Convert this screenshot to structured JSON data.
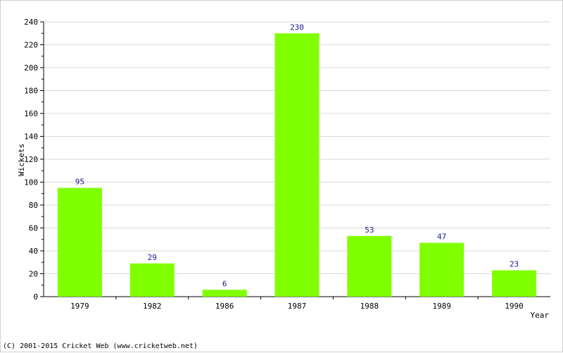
{
  "chart_data": {
    "type": "bar",
    "title": "",
    "xlabel": "Year",
    "ylabel": "Wickets",
    "categories": [
      "1979",
      "1982",
      "1986",
      "1987",
      "1988",
      "1989",
      "1990"
    ],
    "values": [
      95,
      29,
      6,
      230,
      53,
      47,
      23
    ],
    "ylim": [
      0,
      240
    ],
    "y_ticks": [
      0,
      20,
      40,
      60,
      80,
      100,
      120,
      140,
      160,
      180,
      200,
      220,
      240
    ],
    "grid": true,
    "bar_color": "#80ff00",
    "grid_color": "#d8d8d8",
    "label_color": "#1a1a8c"
  },
  "footer": {
    "copyright": "(C) 2001-2015 Cricket Web (www.cricketweb.net)"
  }
}
